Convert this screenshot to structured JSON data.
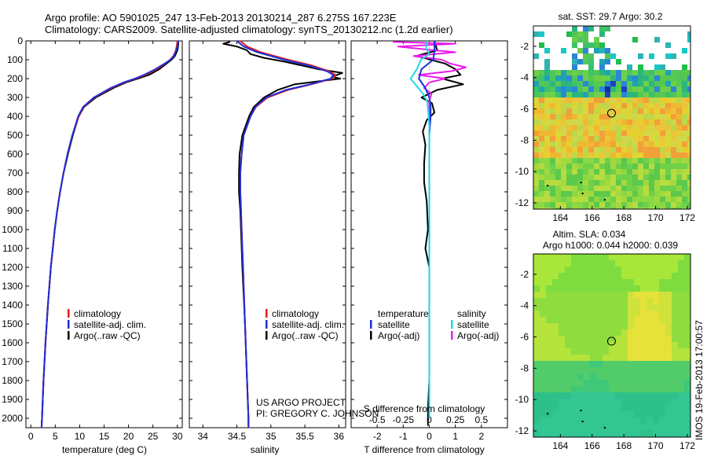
{
  "title": {
    "line1": "Argo profile: AO 5901025_247 13-Feb-2013 20130214_287 6.275S 167.223E",
    "line2": "Climatology: CARS2009. Satellite-adjusted climatology: synTS_20130212.nc (1.2d earlier)"
  },
  "side_label": "IMOS 19-Feb-2013 17:00:57",
  "credits": {
    "project": "US ARGO PROJECT",
    "pi": "PI: GREGORY C. JOHNSON"
  },
  "colors": {
    "climatology": "#e31a1c",
    "satellite": "#1f2fd8",
    "argo": "#000000",
    "salinity_satellite": "#22d8e6",
    "salinity_argo": "#e81ce8"
  },
  "depth_ticks": [
    0,
    100,
    200,
    300,
    400,
    500,
    600,
    700,
    800,
    900,
    1000,
    1100,
    1200,
    1300,
    1400,
    1500,
    1600,
    1700,
    1800,
    1900,
    2000
  ],
  "temperature_panel": {
    "xlabel": "temperature (deg C)",
    "xticks": [
      "0",
      "5",
      "10",
      "15",
      "20",
      "25",
      "30"
    ],
    "legend": [
      "climatology",
      "satellite-adj. clim.",
      "Argo(..raw -QC)"
    ]
  },
  "salinity_panel": {
    "xlabel": "salinity",
    "xticks": [
      "34",
      "34.5",
      "35",
      "35.5",
      "36"
    ],
    "legend": [
      "climatology",
      "satellite-adj. clim.",
      "Argo(..raw -QC)"
    ]
  },
  "difference_panel": {
    "xlabel": "T difference from climatology",
    "xlabel_top": "S difference from climatology",
    "t_ticks": [
      "-2",
      "-1",
      "0",
      "1",
      "2"
    ],
    "s_ticks": [
      "-0.5",
      "-0.25",
      "0",
      "0.25",
      "0.5"
    ],
    "legend_temperature": {
      "header": "temperature",
      "satellite": "satellite",
      "argo": "Argo(-adj)"
    },
    "legend_salinity": {
      "header": "salinity",
      "satellite": "satellite",
      "argo": "Argo(-adj)"
    }
  },
  "sst_map": {
    "title": "sat. SST: 29.7  Argo: 30.2",
    "xticks": [
      "164",
      "166",
      "168",
      "170",
      "172"
    ],
    "yticks": [
      "-2",
      "-4",
      "-6",
      "-8",
      "-10",
      "-12"
    ]
  },
  "sla_map": {
    "title_line1": "Altim. SLA: 0.034",
    "title_line2": "Argo h1000: 0.044  h2000: 0.039",
    "xticks": [
      "164",
      "166",
      "168",
      "170",
      "172"
    ],
    "yticks": [
      "-2",
      "-4",
      "-6",
      "-8",
      "-10",
      "-12"
    ]
  },
  "chart_data": [
    {
      "type": "line",
      "panel": "temperature",
      "xlabel": "temperature (deg C)",
      "ylabel": "",
      "xlim": [
        -1,
        31
      ],
      "ylim": [
        2050,
        0
      ],
      "series": [
        {
          "name": "climatology",
          "y": [
            0,
            20,
            50,
            80,
            100,
            120,
            150,
            180,
            200,
            220,
            250,
            300,
            350,
            400,
            500,
            600,
            700,
            800,
            900,
            1000,
            1200,
            1400,
            1600,
            1800,
            2000,
            2050
          ],
          "x": [
            30.0,
            29.9,
            29.7,
            29.2,
            28.5,
            27.5,
            25.8,
            23.5,
            21.5,
            19.2,
            16.5,
            13.0,
            10.8,
            9.8,
            8.5,
            7.5,
            6.7,
            6.0,
            5.4,
            4.9,
            4.1,
            3.5,
            3.0,
            2.6,
            2.3,
            2.2
          ]
        },
        {
          "name": "satellite-adj. clim.",
          "y": [
            0,
            20,
            50,
            80,
            100,
            120,
            150,
            180,
            200,
            220,
            250,
            300,
            350,
            400,
            500,
            600,
            700,
            800,
            900,
            1000,
            1200,
            1400,
            1600,
            1800,
            2000,
            2050
          ],
          "x": [
            30.2,
            30.1,
            29.8,
            29.3,
            28.6,
            27.4,
            25.5,
            23.2,
            21.3,
            19.0,
            16.3,
            12.9,
            10.7,
            9.7,
            8.5,
            7.5,
            6.7,
            6.0,
            5.4,
            4.9,
            4.1,
            3.5,
            3.0,
            2.6,
            2.3,
            2.2
          ]
        },
        {
          "name": "Argo(..raw -QC)",
          "y": [
            5,
            20,
            50,
            80,
            100,
            120,
            150,
            180,
            200,
            220,
            250,
            300,
            350,
            400,
            500,
            600,
            700,
            800,
            900,
            1000,
            1200,
            1400,
            1600,
            1800,
            2000,
            2040
          ],
          "x": [
            30.2,
            30.2,
            30.0,
            29.5,
            28.8,
            27.8,
            26.3,
            24.2,
            21.9,
            19.5,
            16.9,
            13.3,
            10.9,
            9.8,
            8.6,
            7.6,
            6.7,
            6.0,
            5.4,
            4.9,
            4.1,
            3.5,
            3.0,
            2.6,
            2.3,
            2.2
          ]
        }
      ]
    },
    {
      "type": "line",
      "panel": "salinity",
      "xlabel": "salinity",
      "ylabel": "",
      "xlim": [
        33.8,
        36.1
      ],
      "ylim": [
        2050,
        0
      ],
      "series": [
        {
          "name": "climatology",
          "y": [
            0,
            30,
            60,
            100,
            130,
            160,
            180,
            200,
            230,
            260,
            300,
            350,
            400,
            500,
            600,
            700,
            800,
            900,
            1000,
            1200,
            1500,
            1800,
            2000,
            2050
          ],
          "x": [
            34.55,
            34.65,
            34.85,
            35.25,
            35.6,
            35.85,
            35.95,
            35.9,
            35.6,
            35.25,
            34.95,
            34.78,
            34.7,
            34.6,
            34.57,
            34.55,
            34.55,
            34.56,
            34.57,
            34.59,
            34.62,
            34.65,
            34.67,
            34.67
          ]
        },
        {
          "name": "satellite-adj. clim.",
          "y": [
            0,
            30,
            60,
            100,
            130,
            160,
            180,
            200,
            230,
            260,
            300,
            350,
            400,
            500,
            600,
            700,
            800,
            900,
            1000,
            1200,
            1500,
            1800,
            2000,
            2050
          ],
          "x": [
            34.5,
            34.6,
            34.8,
            35.2,
            35.55,
            35.82,
            35.92,
            35.88,
            35.58,
            35.22,
            34.93,
            34.77,
            34.7,
            34.6,
            34.57,
            34.55,
            34.55,
            34.56,
            34.57,
            34.59,
            34.62,
            34.65,
            34.67,
            34.67
          ]
        },
        {
          "name": "Argo(..raw -QC)",
          "y": [
            5,
            15,
            30,
            50,
            70,
            90,
            110,
            130,
            150,
            170,
            190,
            200,
            210,
            230,
            260,
            300,
            350,
            400,
            500,
            600,
            700,
            800,
            900,
            1000,
            1200,
            1500,
            1800,
            2000,
            2040
          ],
          "x": [
            34.4,
            34.3,
            34.5,
            34.65,
            34.7,
            34.9,
            35.2,
            35.45,
            35.7,
            36.05,
            35.9,
            36.02,
            35.8,
            35.35,
            35.1,
            34.9,
            34.75,
            34.68,
            34.58,
            34.54,
            34.53,
            34.53,
            34.55,
            34.56,
            34.58,
            34.62,
            34.65,
            34.67,
            34.67
          ]
        }
      ]
    },
    {
      "type": "line",
      "panel": "difference",
      "xlabel": "T difference from climatology",
      "xlabel_top": "S difference from climatology",
      "xlim_T": [
        -3,
        3
      ],
      "xlim_S": [
        -0.75,
        0.75
      ],
      "ylim": [
        2050,
        0
      ],
      "series": [
        {
          "name": "temperature satellite",
          "axis": "T",
          "y": [
            0,
            50,
            100,
            150,
            200,
            250,
            300,
            350,
            400,
            500,
            600,
            800,
            1000,
            1500,
            2000
          ],
          "x": [
            0.2,
            0.2,
            0.15,
            -0.3,
            -0.4,
            -0.15,
            0.0,
            0.05,
            0.05,
            0.0,
            0.0,
            0.0,
            0.0,
            0.0,
            0.0
          ]
        },
        {
          "name": "temperature Argo(-adj)",
          "axis": "T",
          "y": [
            0,
            50,
            80,
            120,
            150,
            180,
            200,
            230,
            260,
            300,
            330,
            380,
            420,
            480,
            550,
            650,
            750,
            850,
            1000,
            1100,
            1200,
            1400,
            1600,
            1800,
            1950,
            2040
          ],
          "x": [
            0.2,
            0.3,
            -0.5,
            0.6,
            1.0,
            1.2,
            0.5,
            1.3,
            0.3,
            -0.3,
            0.1,
            0.2,
            -0.1,
            -0.25,
            -0.15,
            -0.2,
            -0.2,
            -0.1,
            -0.05,
            -0.15,
            0.0,
            0.0,
            0.0,
            0.0,
            -0.05,
            -0.05
          ]
        },
        {
          "name": "salinity satellite",
          "axis": "S",
          "y": [
            0,
            40,
            70,
            100,
            150,
            200,
            240,
            280,
            320,
            380,
            450,
            600,
            800,
            1200,
            2000
          ],
          "x": [
            -0.02,
            -0.03,
            0.0,
            -0.08,
            -0.12,
            -0.18,
            -0.12,
            -0.06,
            -0.02,
            -0.01,
            0.0,
            0.0,
            0.0,
            0.0,
            0.0
          ]
        },
        {
          "name": "salinity Argo(-adj)",
          "axis": "S",
          "y": [
            5,
            15,
            30,
            50,
            60,
            80,
            100,
            120,
            140,
            160,
            180,
            200,
            220,
            250,
            280,
            320,
            360,
            420,
            600,
            900,
            2000
          ],
          "x": [
            -0.35,
            0.25,
            -0.3,
            0.05,
            0.25,
            -0.15,
            0.12,
            0.2,
            0.35,
            0.22,
            -0.1,
            0.15,
            0.0,
            -0.05,
            0.02,
            0.0,
            0.0,
            0.0,
            0.0,
            0.0,
            0.0
          ]
        }
      ]
    },
    {
      "type": "heatmap",
      "panel": "sst_map",
      "title": "sat. SST: 29.7  Argo: 30.2",
      "xlim": [
        162.3,
        172.2
      ],
      "ylim": [
        -12.4,
        -0.7
      ],
      "argo_position": [
        167.223,
        -6.275
      ]
    },
    {
      "type": "heatmap",
      "panel": "sla_map",
      "title": "Altim. SLA: 0.034",
      "xlim": [
        162.3,
        172.2
      ],
      "ylim": [
        -12.4,
        -0.7
      ],
      "argo_position": [
        167.223,
        -6.275
      ]
    }
  ]
}
